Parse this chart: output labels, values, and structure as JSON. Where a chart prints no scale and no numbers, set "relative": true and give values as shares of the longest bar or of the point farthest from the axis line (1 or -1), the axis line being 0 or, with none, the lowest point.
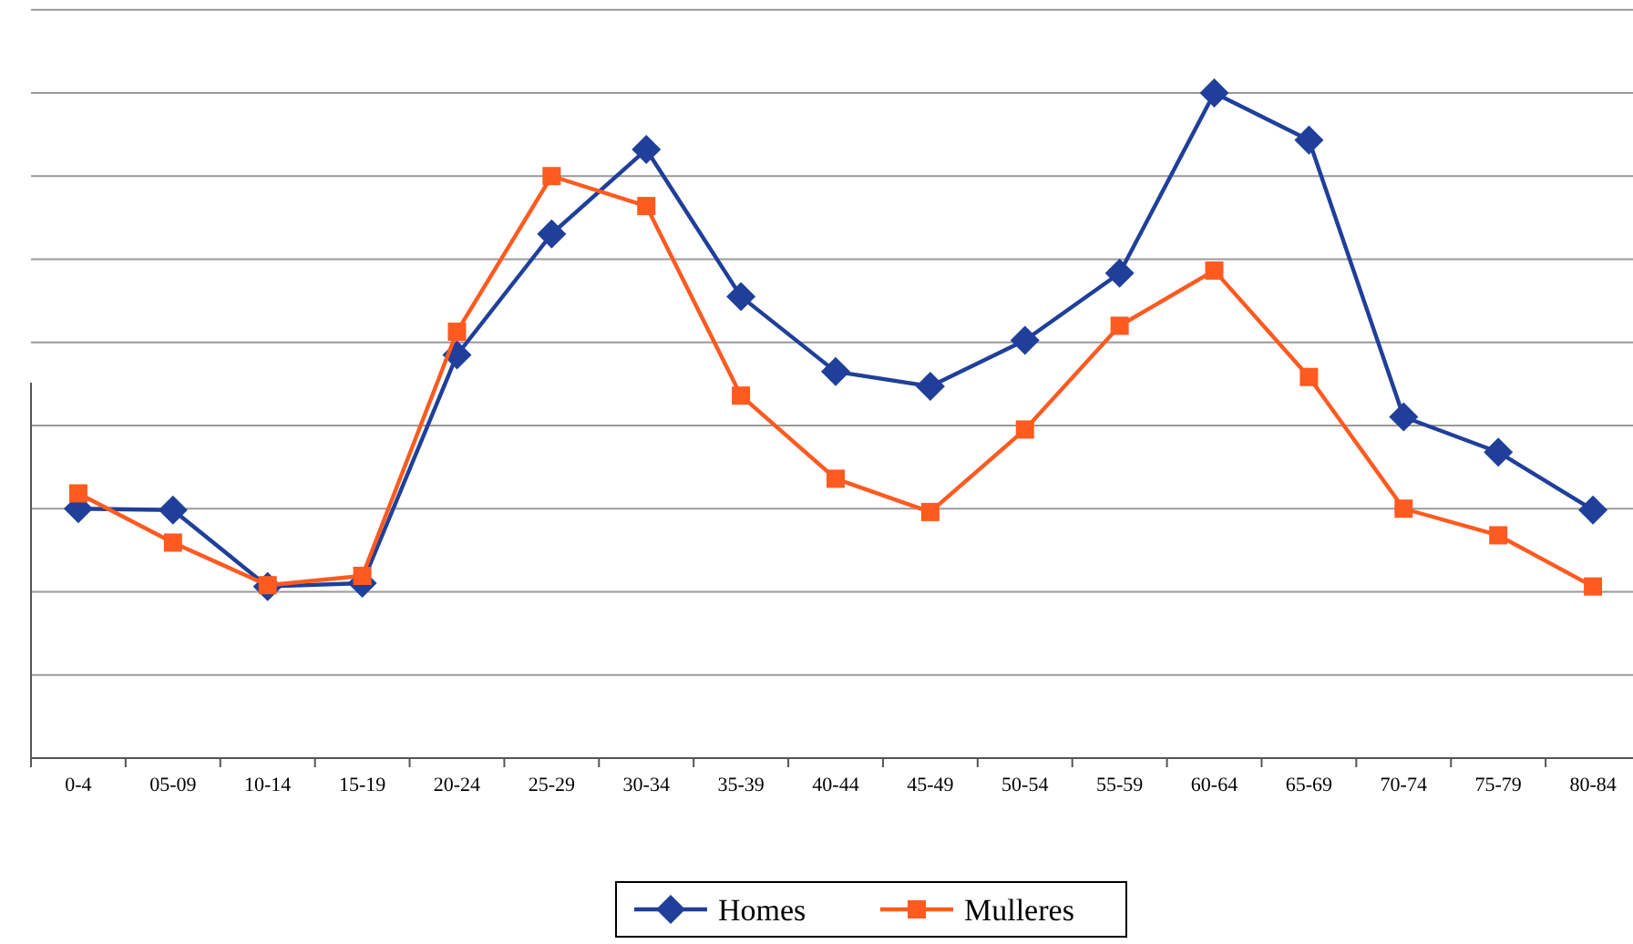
{
  "chart_data": {
    "type": "line",
    "relative": true,
    "categories": [
      "0-4",
      "05-09",
      "10-14",
      "15-19",
      "20-24",
      "25-29",
      "30-34",
      "35-39",
      "40-44",
      "45-49",
      "50-54",
      "55-59",
      "60-64",
      "65-69",
      "70-74",
      "75-79",
      "80-84"
    ],
    "series": [
      {
        "name": "Homes",
        "color": "#1f3f9a",
        "marker": "diamond",
        "values": [
          0.375,
          0.373,
          0.258,
          0.263,
          0.606,
          0.788,
          0.915,
          0.694,
          0.581,
          0.559,
          0.628,
          0.729,
          1,
          0.929,
          0.513,
          0.46,
          0.373
        ]
      },
      {
        "name": "Mulleres",
        "color": "#ff5a1f",
        "marker": "square",
        "values": [
          0.398,
          0.324,
          0.26,
          0.274,
          0.641,
          0.875,
          0.83,
          0.545,
          0.42,
          0.37,
          0.494,
          0.65,
          0.733,
          0.573,
          0.375,
          0.335,
          0.258
        ]
      }
    ],
    "grid": "y",
    "legend": "bottom",
    "line_style": "solid"
  }
}
